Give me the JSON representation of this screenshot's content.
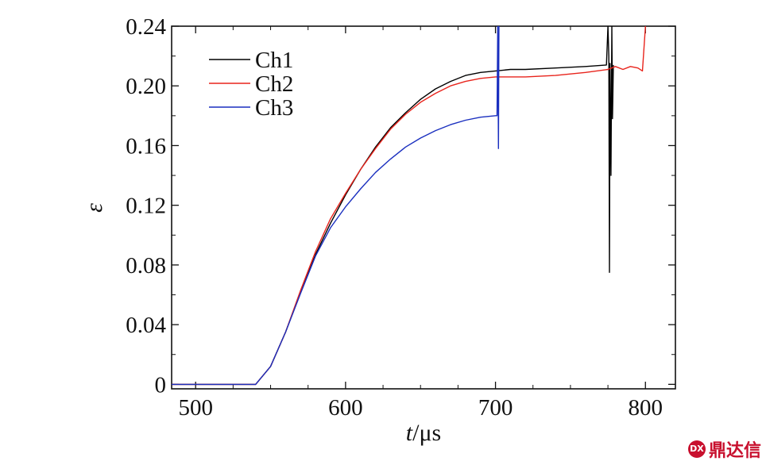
{
  "chart_data": {
    "type": "line",
    "xlabel_italic": "t",
    "xlabel_unit": "/μs",
    "ylabel": "ε",
    "xlim": [
      484,
      820
    ],
    "ylim": [
      -0.003,
      0.24
    ],
    "x_ticks": [
      500,
      600,
      700,
      800
    ],
    "x_tick_labels": [
      "500",
      "600",
      "700",
      "800"
    ],
    "y_ticks": [
      0,
      0.04,
      0.08,
      0.12,
      0.16,
      0.2,
      0.24
    ],
    "y_tick_labels": [
      "0",
      "0.04",
      "0.08",
      "0.12",
      "0.16",
      "0.20",
      "0.24"
    ],
    "grid": false,
    "legend_position": "top-left",
    "series": [
      {
        "name": "Ch1",
        "color": "#000000",
        "points": [
          [
            484,
            0
          ],
          [
            540,
            0
          ],
          [
            550,
            0.012
          ],
          [
            560,
            0.035
          ],
          [
            570,
            0.062
          ],
          [
            580,
            0.087
          ],
          [
            590,
            0.108
          ],
          [
            600,
            0.127
          ],
          [
            610,
            0.144
          ],
          [
            620,
            0.159
          ],
          [
            630,
            0.172
          ],
          [
            640,
            0.182
          ],
          [
            650,
            0.191
          ],
          [
            660,
            0.198
          ],
          [
            670,
            0.203
          ],
          [
            680,
            0.207
          ],
          [
            690,
            0.209
          ],
          [
            700,
            0.21
          ],
          [
            710,
            0.211
          ],
          [
            720,
            0.211
          ],
          [
            740,
            0.212
          ],
          [
            760,
            0.213
          ],
          [
            774,
            0.214
          ],
          [
            775,
            0.24
          ],
          [
            775.6,
            0.22
          ],
          [
            776,
            0.075
          ],
          [
            776.4,
            0.215
          ],
          [
            777,
            0.14
          ],
          [
            777.6,
            0.24
          ],
          [
            778,
            0.178
          ],
          [
            778.6,
            0.214
          ]
        ]
      },
      {
        "name": "Ch2",
        "color": "#e8241c",
        "points": [
          [
            484,
            0
          ],
          [
            540,
            0
          ],
          [
            550,
            0.012
          ],
          [
            560,
            0.035
          ],
          [
            570,
            0.063
          ],
          [
            580,
            0.089
          ],
          [
            590,
            0.111
          ],
          [
            600,
            0.128
          ],
          [
            610,
            0.144
          ],
          [
            620,
            0.158
          ],
          [
            630,
            0.171
          ],
          [
            640,
            0.181
          ],
          [
            650,
            0.189
          ],
          [
            660,
            0.195
          ],
          [
            670,
            0.2
          ],
          [
            680,
            0.203
          ],
          [
            690,
            0.205
          ],
          [
            700,
            0.206
          ],
          [
            720,
            0.206
          ],
          [
            740,
            0.207
          ],
          [
            760,
            0.209
          ],
          [
            775,
            0.211
          ],
          [
            780,
            0.213
          ],
          [
            785,
            0.211
          ],
          [
            790,
            0.213
          ],
          [
            795,
            0.212
          ],
          [
            798,
            0.21
          ],
          [
            800,
            0.24
          ]
        ]
      },
      {
        "name": "Ch3",
        "color": "#1a2fbf",
        "points": [
          [
            484,
            0
          ],
          [
            540,
            0
          ],
          [
            550,
            0.012
          ],
          [
            560,
            0.035
          ],
          [
            570,
            0.061
          ],
          [
            580,
            0.086
          ],
          [
            590,
            0.105
          ],
          [
            600,
            0.119
          ],
          [
            610,
            0.131
          ],
          [
            620,
            0.142
          ],
          [
            630,
            0.151
          ],
          [
            640,
            0.159
          ],
          [
            650,
            0.165
          ],
          [
            660,
            0.17
          ],
          [
            670,
            0.174
          ],
          [
            680,
            0.177
          ],
          [
            690,
            0.179
          ],
          [
            700,
            0.18
          ],
          [
            701,
            0.18
          ],
          [
            701.5,
            0.24
          ],
          [
            702,
            0.158
          ],
          [
            702.3,
            0.24
          ]
        ]
      }
    ]
  },
  "watermark": {
    "icon_text": "DX",
    "text": "鼎达信"
  }
}
